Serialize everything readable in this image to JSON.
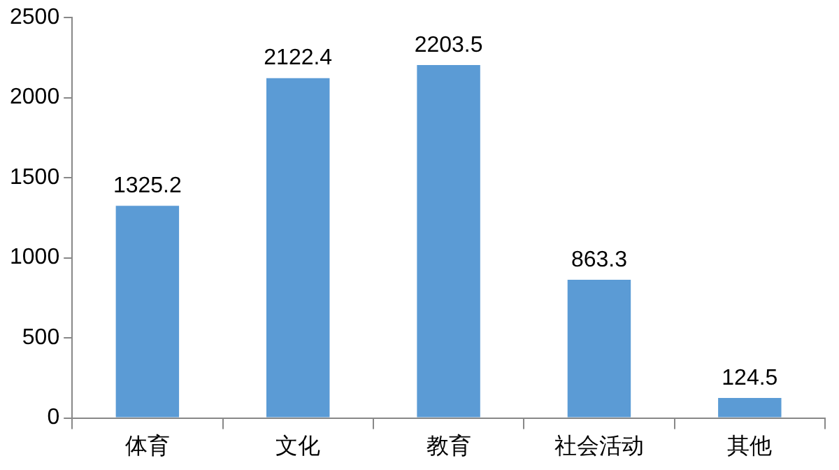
{
  "chart_data": {
    "type": "bar",
    "categories": [
      "体育",
      "文化",
      "教育",
      "社会活动",
      "其他"
    ],
    "values": [
      1325.2,
      2122.4,
      2203.5,
      863.3,
      124.5
    ],
    "color": "#5b9bd5",
    "ylim": [
      0,
      2500
    ],
    "yticks": [
      0,
      500,
      1000,
      1500,
      2000,
      2500
    ],
    "grid": false,
    "legend": false,
    "data_labels": true
  }
}
